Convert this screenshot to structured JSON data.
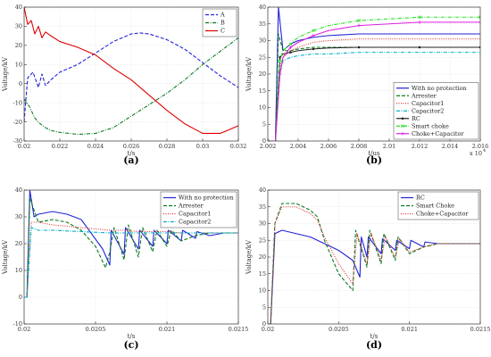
{
  "chart_data": [
    {
      "panel_label": "(a)",
      "type": "line",
      "xlabel": "t/s",
      "ylabel": "Voltage/kV",
      "xlim": [
        0.02,
        0.032
      ],
      "ylim": [
        -30,
        40
      ],
      "xticks": [
        0.02,
        0.022,
        0.024,
        0.026,
        0.028,
        0.03,
        0.032
      ],
      "xtick_labels": [
        "0.02",
        "0.022",
        "0.024",
        "0.026",
        "0.028",
        "0.03",
        "0.032"
      ],
      "yticks": [
        -30,
        -20,
        -10,
        0,
        10,
        20,
        30,
        40
      ],
      "legend_position": "top-right",
      "series": [
        {
          "name": "A",
          "color": "#1f23d8",
          "dash": "dashed",
          "x": [
            0.02,
            0.0202,
            0.0205,
            0.0208,
            0.021,
            0.0212,
            0.0215,
            0.022,
            0.023,
            0.024,
            0.025,
            0.026,
            0.0265,
            0.027,
            0.028,
            0.029,
            0.03,
            0.031,
            0.032
          ],
          "y": [
            -20,
            3,
            6,
            -2,
            5,
            -1,
            2,
            6,
            10,
            16,
            22,
            26,
            26.5,
            26,
            23,
            18,
            11,
            4,
            -2
          ]
        },
        {
          "name": "B",
          "color": "#0a7a1f",
          "dash": "dashdot",
          "x": [
            0.02,
            0.0203,
            0.0206,
            0.0209,
            0.0212,
            0.0215,
            0.022,
            0.023,
            0.024,
            0.025,
            0.026,
            0.027,
            0.028,
            0.029,
            0.03,
            0.031,
            0.032
          ],
          "y": [
            -8,
            -12,
            -18,
            -21,
            -23,
            -24.5,
            -25.5,
            -26.5,
            -26,
            -23,
            -17,
            -11,
            -5,
            2,
            10,
            17,
            24
          ]
        },
        {
          "name": "C",
          "color": "#e00000",
          "dash": "solid",
          "x": [
            0.02,
            0.0202,
            0.0204,
            0.0206,
            0.0208,
            0.021,
            0.0212,
            0.0215,
            0.022,
            0.023,
            0.024,
            0.025,
            0.026,
            0.027,
            0.028,
            0.029,
            0.03,
            0.031,
            0.032
          ],
          "y": [
            40,
            31,
            33,
            26,
            30,
            24,
            27,
            25,
            22,
            19,
            15,
            8,
            2,
            -6,
            -14,
            -21,
            -26,
            -26,
            -22
          ]
        }
      ]
    },
    {
      "panel_label": "(b)",
      "type": "line",
      "xlabel": "t/us",
      "ylabel": "Voltage/kV",
      "x_multiplier": "x 10",
      "x_exponent": "4",
      "xlim": [
        2.002,
        2.016
      ],
      "ylim": [
        0,
        40
      ],
      "xticks": [
        2.002,
        2.004,
        2.006,
        2.008,
        2.01,
        2.012,
        2.014,
        2.016
      ],
      "xtick_labels": [
        "2.002",
        "2.004",
        "2.006",
        "2.008",
        "2.01",
        "2.012",
        "2.014",
        "2.016"
      ],
      "yticks": [
        0,
        5,
        10,
        15,
        20,
        25,
        30,
        35,
        40
      ],
      "legend_position": "bottom-right",
      "series": [
        {
          "name": "With no protection",
          "color": "#1f23d8",
          "dash": "solid",
          "x": [
            2.002,
            2.0025,
            2.0027,
            2.003,
            2.0035,
            2.004,
            2.005,
            2.006,
            2.008,
            2.01,
            2.012,
            2.014,
            2.016
          ],
          "y": [
            0,
            0,
            40,
            27,
            29,
            30,
            31,
            31.5,
            32,
            32,
            32,
            32,
            32
          ]
        },
        {
          "name": "Arrester",
          "color": "#0a7a1f",
          "dash": "dashed",
          "x": [
            2.002,
            2.0025,
            2.0027,
            2.003,
            2.0035,
            2.004,
            2.005,
            2.006,
            2.008,
            2.01,
            2.012,
            2.014,
            2.016
          ],
          "y": [
            0,
            0,
            32,
            27,
            27,
            27.5,
            28,
            28,
            28,
            28,
            28,
            28,
            28
          ]
        },
        {
          "name": "Capacitor1",
          "color": "#e03030",
          "dash": "dotted",
          "x": [
            2.002,
            2.0025,
            2.0028,
            2.003,
            2.0035,
            2.004,
            2.005,
            2.006,
            2.008,
            2.01,
            2.012,
            2.014,
            2.016
          ],
          "y": [
            0,
            0,
            22,
            25,
            27,
            28,
            29.5,
            30,
            30.5,
            30.5,
            30.5,
            30.5,
            30.5
          ]
        },
        {
          "name": "Capacitor2",
          "color": "#00b0c8",
          "dash": "dashdot",
          "x": [
            2.002,
            2.0025,
            2.0028,
            2.003,
            2.0035,
            2.004,
            2.005,
            2.006,
            2.008,
            2.01,
            2.012,
            2.014,
            2.016
          ],
          "y": [
            0,
            0,
            20,
            24,
            25,
            25.5,
            26,
            26,
            26.5,
            26.5,
            26.5,
            26.5,
            26.5
          ]
        },
        {
          "name": "RC",
          "color": "#222222",
          "dash": "solid",
          "marker": "dot",
          "x": [
            2.002,
            2.0025,
            2.0028,
            2.003,
            2.0035,
            2.004,
            2.005,
            2.006,
            2.008,
            2.01,
            2.012,
            2.014,
            2.016
          ],
          "y": [
            0,
            0,
            25,
            26,
            26.5,
            27,
            27.5,
            27.8,
            28,
            28,
            28,
            28,
            28
          ]
        },
        {
          "name": "Smart choke",
          "color": "#22e022",
          "dash": "dashdot",
          "marker": "x",
          "x": [
            2.002,
            2.0025,
            2.0028,
            2.003,
            2.0035,
            2.004,
            2.005,
            2.006,
            2.008,
            2.01,
            2.012,
            2.014,
            2.016
          ],
          "y": [
            0,
            0,
            24,
            27,
            29,
            31,
            33,
            34.5,
            36,
            36.5,
            37,
            37,
            37
          ]
        },
        {
          "name": "Choke+Capacitor",
          "color": "#e020e0",
          "dash": "solid",
          "marker": "plus",
          "x": [
            2.002,
            2.0025,
            2.0028,
            2.003,
            2.0035,
            2.004,
            2.005,
            2.006,
            2.008,
            2.01,
            2.012,
            2.014,
            2.016
          ],
          "y": [
            0,
            0,
            20,
            25,
            28,
            29.5,
            31.5,
            33,
            34.5,
            35,
            35.5,
            35.5,
            35.5
          ]
        }
      ]
    },
    {
      "panel_label": "(c)",
      "type": "line",
      "xlabel": "t/s",
      "ylabel": "Voltage/kV",
      "xlim": [
        0.02,
        0.0215
      ],
      "ylim": [
        -10,
        40
      ],
      "xticks": [
        0.02,
        0.0205,
        0.021,
        0.0215
      ],
      "xtick_labels": [
        "0.02",
        "0.0205",
        "0.021",
        "0.0215"
      ],
      "yticks": [
        -10,
        0,
        10,
        20,
        30,
        40
      ],
      "legend_position": "top-right",
      "series": [
        {
          "name": "With no protection",
          "color": "#1f23d8",
          "dash": "solid",
          "x": [
            0.02,
            0.02002,
            0.02004,
            0.02007,
            0.0201,
            0.0202,
            0.0203,
            0.0204,
            0.02055,
            0.0206,
            0.02061,
            0.0207,
            0.02071,
            0.0208,
            0.02081,
            0.0209,
            0.02091,
            0.021,
            0.02101,
            0.0211,
            0.02111,
            0.0212,
            0.02121,
            0.0213,
            0.0214,
            0.0215
          ],
          "y": [
            0,
            0,
            40,
            30,
            31,
            32,
            31,
            29,
            18,
            12,
            25,
            16,
            26,
            18,
            25,
            19,
            25,
            20,
            25,
            21,
            25,
            22,
            24.5,
            23,
            24,
            24
          ]
        },
        {
          "name": "Arrester",
          "color": "#0a7a1f",
          "dash": "dashed",
          "x": [
            0.02,
            0.02002,
            0.02004,
            0.0201,
            0.0202,
            0.0203,
            0.0204,
            0.0205,
            0.02057,
            0.0206,
            0.02063,
            0.0207,
            0.02073,
            0.0208,
            0.02083,
            0.0209,
            0.02093,
            0.021,
            0.02103,
            0.0211,
            0.0212,
            0.0213,
            0.0214,
            0.0215
          ],
          "y": [
            0,
            0,
            37,
            28,
            29,
            28,
            25,
            19,
            11,
            17,
            26,
            14,
            27,
            15,
            26,
            17,
            25,
            19,
            25,
            21,
            23,
            24,
            24,
            24
          ]
        },
        {
          "name": "Capacitor1",
          "color": "#e03030",
          "dash": "dotted",
          "x": [
            0.02,
            0.02002,
            0.02005,
            0.0201,
            0.0202,
            0.0204,
            0.0206,
            0.0207,
            0.0208,
            0.0209,
            0.021,
            0.0211,
            0.0212,
            0.0213,
            0.0214,
            0.0215
          ],
          "y": [
            0,
            0,
            28,
            28,
            27,
            26,
            25,
            25,
            24.5,
            24.5,
            24.5,
            24,
            24,
            24,
            24,
            24
          ]
        },
        {
          "name": "Capacitor2",
          "color": "#00b0c8",
          "dash": "dashdot",
          "x": [
            0.02,
            0.02002,
            0.02005,
            0.0201,
            0.0202,
            0.0204,
            0.0206,
            0.0207,
            0.0208,
            0.0209,
            0.021,
            0.0211,
            0.0212,
            0.0213,
            0.0214,
            0.0215
          ],
          "y": [
            0,
            0,
            26,
            25,
            25,
            24.5,
            24,
            24,
            24,
            24,
            24,
            24,
            24,
            24,
            24,
            24
          ]
        }
      ]
    },
    {
      "panel_label": "(d)",
      "type": "line",
      "xlabel": "t/s",
      "ylabel": "Voltage/kV",
      "xlim": [
        0.02,
        0.0215
      ],
      "ylim": [
        0,
        40
      ],
      "xticks": [
        0.02,
        0.0205,
        0.021,
        0.0215
      ],
      "xtick_labels": [
        "0.02",
        "0.0205",
        "0.021",
        "0.0215"
      ],
      "yticks": [
        0,
        5,
        10,
        15,
        20,
        25,
        30,
        35,
        40
      ],
      "legend_position": "top-right",
      "series": [
        {
          "name": "RC",
          "color": "#1f23d8",
          "dash": "solid",
          "x": [
            0.02,
            0.02002,
            0.02005,
            0.0201,
            0.0202,
            0.0203,
            0.0204,
            0.0205,
            0.0206,
            0.02065,
            0.02066,
            0.0207,
            0.02071,
            0.0208,
            0.02081,
            0.0209,
            0.02091,
            0.021,
            0.02101,
            0.0211,
            0.02111,
            0.0212,
            0.0213,
            0.0214,
            0.0215
          ],
          "y": [
            0,
            0,
            27,
            28,
            27,
            26,
            24,
            22,
            19,
            14,
            26,
            20,
            26,
            21,
            25.5,
            22,
            25,
            22.5,
            25,
            23,
            24.5,
            24,
            24,
            24,
            24
          ]
        },
        {
          "name": "Smart Choke",
          "color": "#0a7a1f",
          "dash": "dashed",
          "x": [
            0.02,
            0.02002,
            0.02005,
            0.0201,
            0.0202,
            0.0203,
            0.02035,
            0.0204,
            0.0205,
            0.0206,
            0.02062,
            0.0207,
            0.02072,
            0.0208,
            0.02082,
            0.0209,
            0.02092,
            0.021,
            0.0211,
            0.0212,
            0.0213,
            0.0214,
            0.0215
          ],
          "y": [
            0,
            0,
            30,
            36,
            36,
            34,
            32,
            25,
            15,
            10,
            28,
            17,
            28,
            18,
            27,
            19,
            26,
            21,
            23,
            24,
            24,
            24,
            24
          ]
        },
        {
          "name": "Choke+Capacitor",
          "color": "#e03030",
          "dash": "dotted",
          "x": [
            0.02,
            0.02002,
            0.02005,
            0.0201,
            0.0202,
            0.0203,
            0.02035,
            0.0204,
            0.0205,
            0.0206,
            0.02063,
            0.0207,
            0.02073,
            0.0208,
            0.02083,
            0.0209,
            0.02093,
            0.021,
            0.0211,
            0.0212,
            0.0213,
            0.0214,
            0.0215
          ],
          "y": [
            0,
            0,
            30,
            35,
            35,
            33,
            31,
            26,
            18,
            12,
            27,
            18,
            27,
            19,
            26,
            20,
            25.5,
            21.5,
            23,
            24,
            24,
            24,
            24
          ]
        }
      ]
    }
  ]
}
